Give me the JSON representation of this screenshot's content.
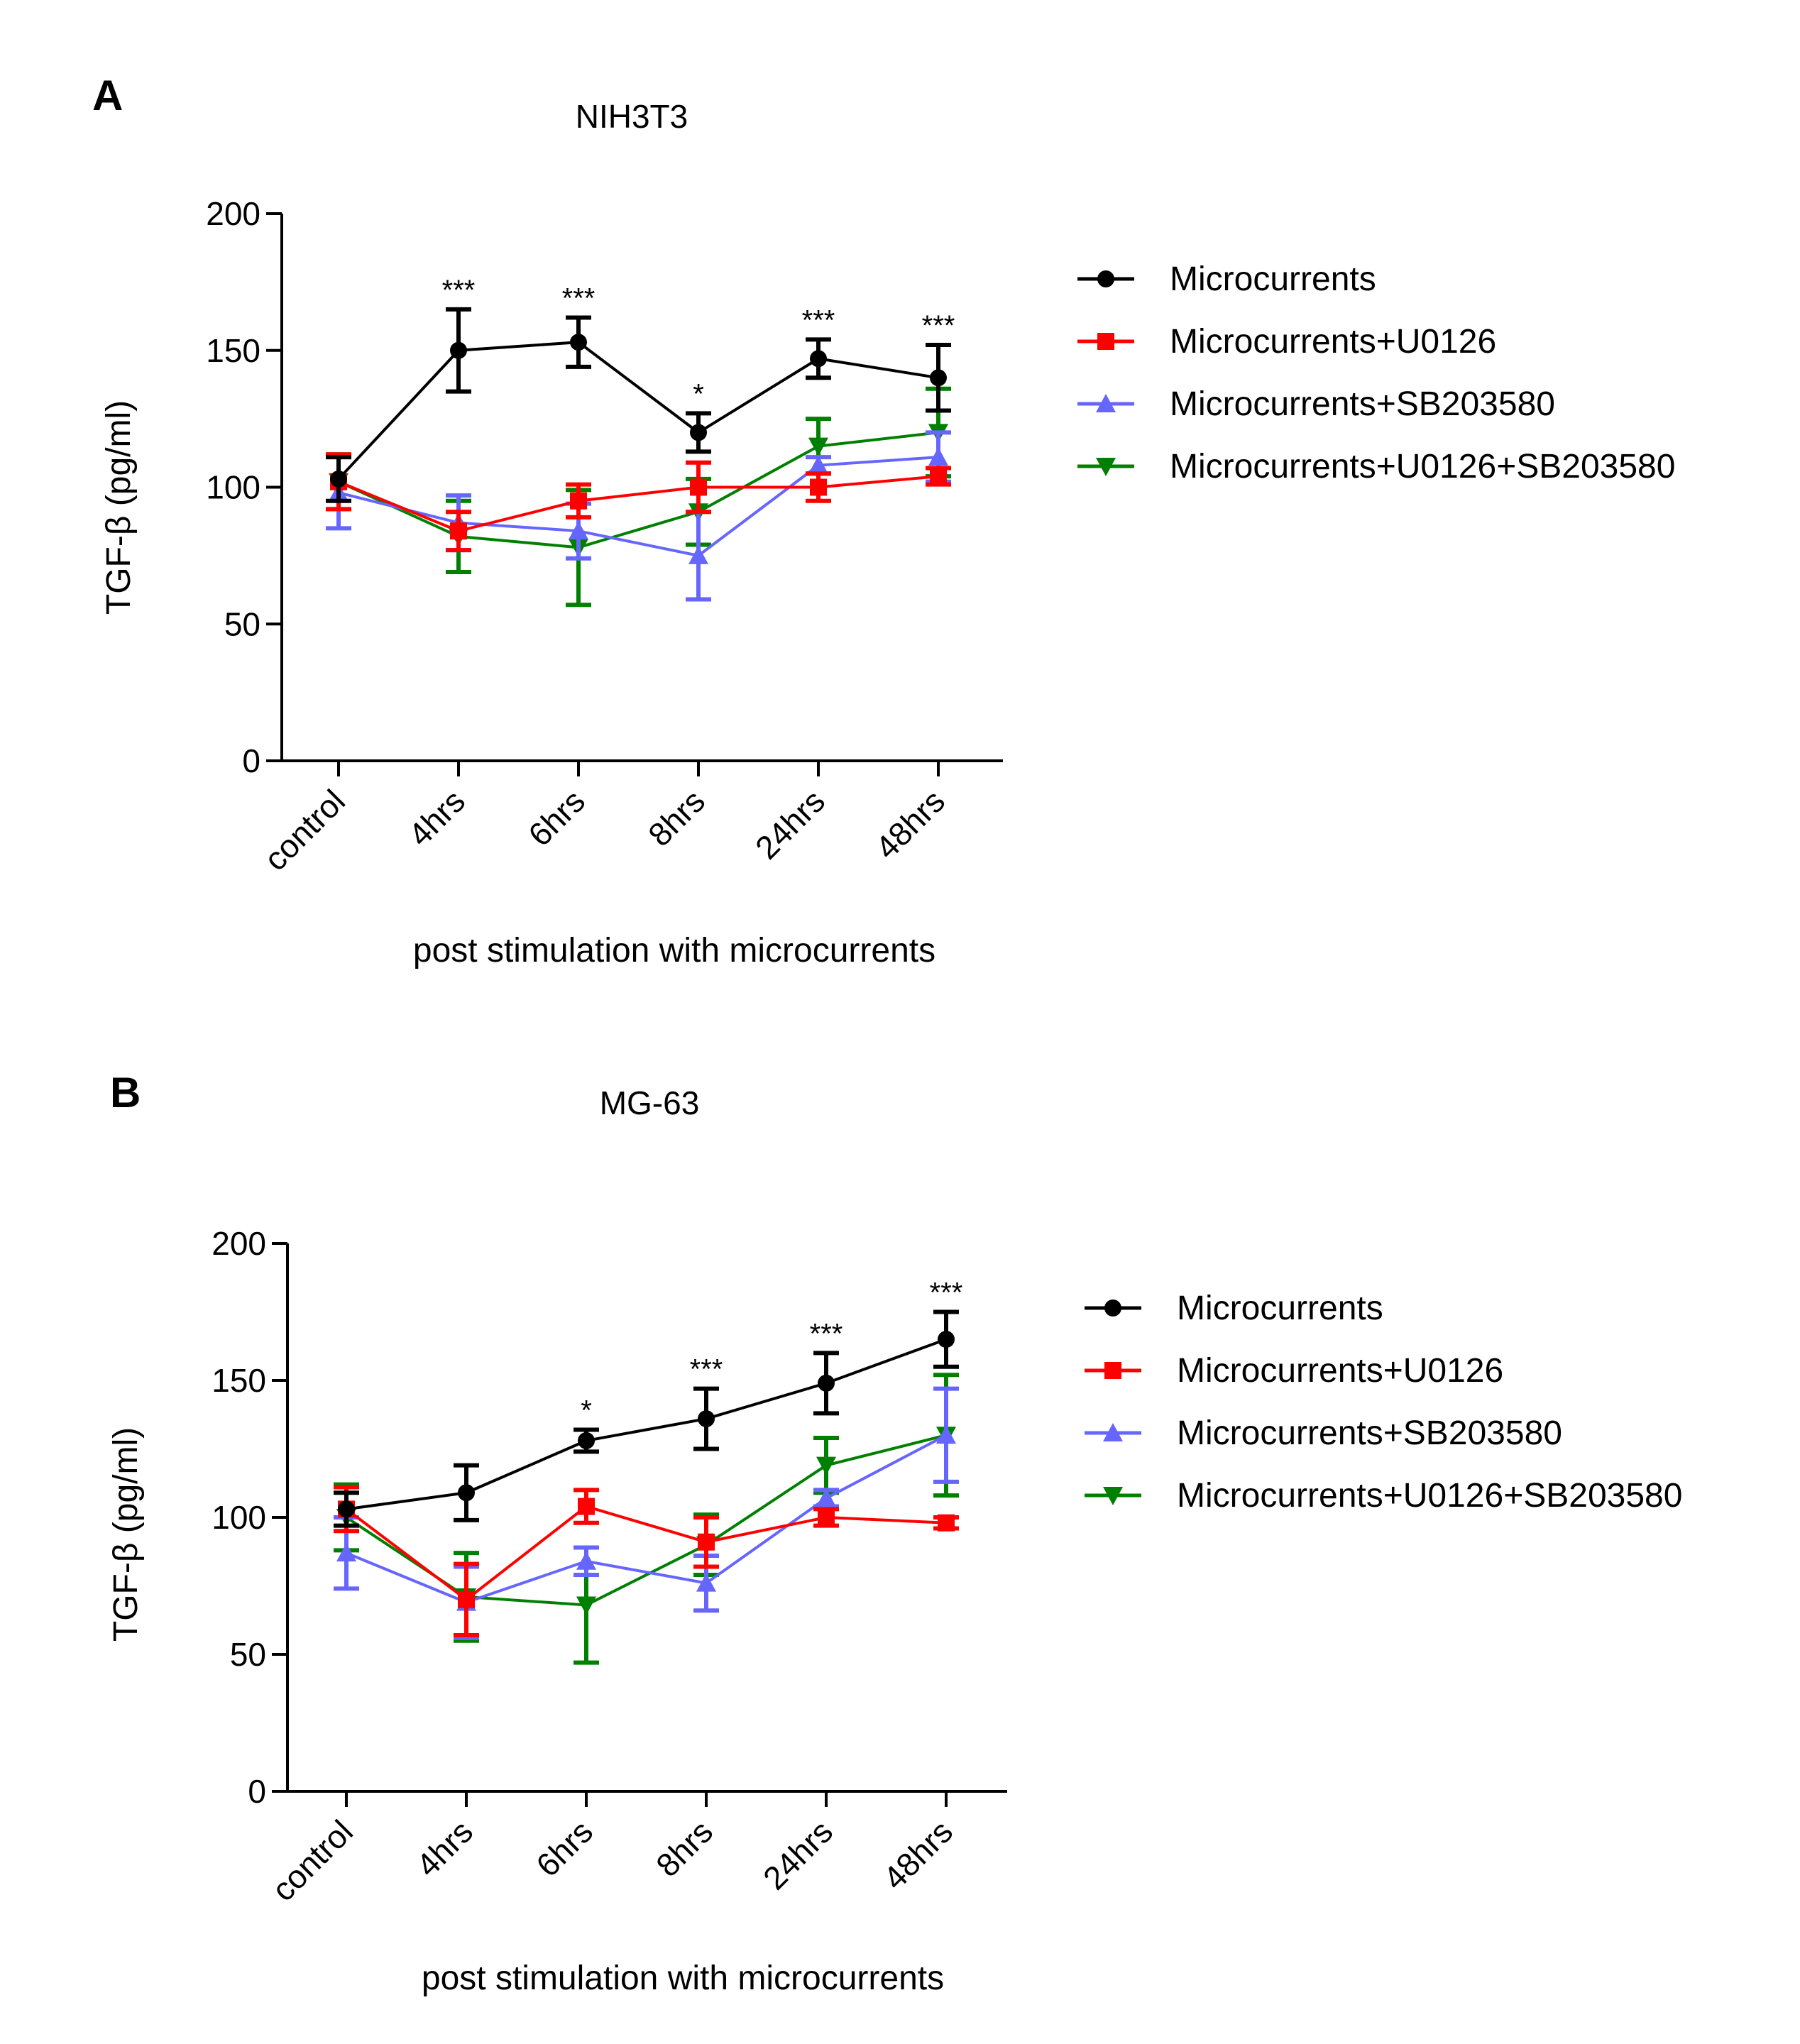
{
  "chart_data": [
    {
      "type": "line",
      "panel_label": "A",
      "title": "NIH3T3",
      "xlabel": "post stimulation with microcurrents",
      "ylabel": "TGF-β (pg/ml)",
      "categories": [
        "control",
        "4hrs",
        "6hrs",
        "8hrs",
        "24hrs",
        "48hrs"
      ],
      "ylim": [
        0,
        200
      ],
      "yticks": [
        "0",
        "50",
        "100",
        "150",
        "200"
      ],
      "legend_position": "right",
      "series": [
        {
          "name": "Microcurrents",
          "color": "#000000",
          "marker": "circle",
          "values": [
            103,
            150,
            153,
            120,
            147,
            140
          ],
          "errors": [
            8,
            15,
            9,
            7,
            7,
            12
          ],
          "significance": [
            "",
            "***",
            "***",
            "*",
            "***",
            "***"
          ]
        },
        {
          "name": "Microcurrents+U0126",
          "color": "#ff0000",
          "marker": "square",
          "values": [
            102,
            84,
            95,
            100,
            100,
            104
          ],
          "errors": [
            10,
            7,
            6,
            9,
            5,
            3
          ]
        },
        {
          "name": "Microcurrents+SB203580",
          "color": "#6666ff",
          "marker": "triangle-up",
          "values": [
            98,
            87,
            84,
            75,
            108,
            111
          ],
          "errors": [
            13,
            10,
            10,
            16,
            3,
            9
          ]
        },
        {
          "name": "Microcurrents+U0126+SB203580",
          "color": "#008000",
          "marker": "triangle-down",
          "values": [
            102,
            82,
            78,
            91,
            115,
            120
          ],
          "errors": [
            10,
            13,
            21,
            12,
            10,
            16
          ]
        }
      ]
    },
    {
      "type": "line",
      "panel_label": "B",
      "title": "MG-63",
      "xlabel": "post stimulation with microcurrents",
      "ylabel": "TGF-β (pg/ml)",
      "categories": [
        "control",
        "4hrs",
        "6hrs",
        "8hrs",
        "24hrs",
        "48hrs"
      ],
      "ylim": [
        0,
        200
      ],
      "yticks": [
        "0",
        "50",
        "100",
        "150",
        "200"
      ],
      "legend_position": "right",
      "series": [
        {
          "name": "Microcurrents",
          "color": "#000000",
          "marker": "circle",
          "values": [
            103,
            109,
            128,
            136,
            149,
            165
          ],
          "errors": [
            6,
            10,
            4,
            11,
            11,
            10
          ],
          "significance": [
            "",
            "",
            "*",
            "***",
            "***",
            "***"
          ]
        },
        {
          "name": "Microcurrents+U0126",
          "color": "#ff0000",
          "marker": "square",
          "values": [
            103,
            70,
            104,
            91,
            100,
            98
          ],
          "errors": [
            8,
            13,
            6,
            9,
            3,
            2
          ]
        },
        {
          "name": "Microcurrents+SB203580",
          "color": "#6666ff",
          "marker": "triangle-up",
          "values": [
            87,
            69,
            84,
            76,
            107,
            130
          ],
          "errors": [
            13,
            13,
            5,
            10,
            3,
            17
          ]
        },
        {
          "name": "Microcurrents+U0126+SB203580",
          "color": "#008000",
          "marker": "triangle-down",
          "values": [
            100,
            71,
            68,
            90,
            119,
            130
          ],
          "errors": [
            12,
            16,
            21,
            11,
            10,
            22
          ]
        }
      ]
    }
  ]
}
